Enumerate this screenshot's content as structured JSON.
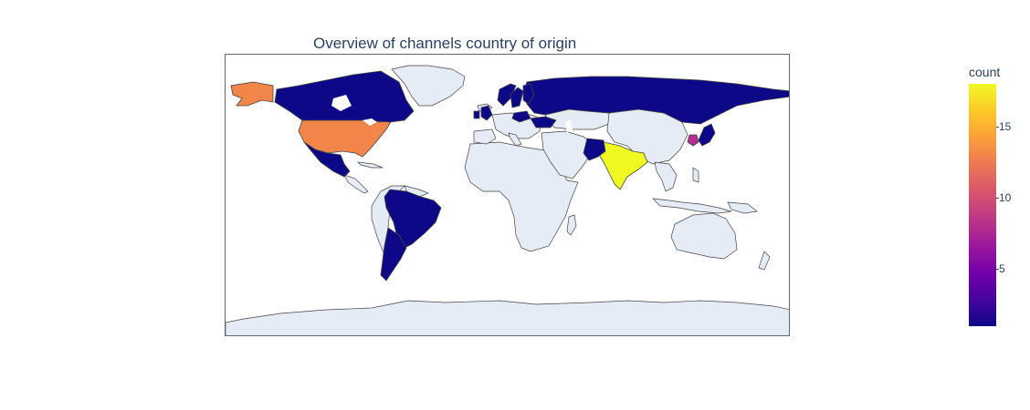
{
  "title": "Overview of channels country of origin",
  "colorbar": {
    "title": "count",
    "min": 1,
    "max": 18,
    "ticks": [
      {
        "value": 5,
        "label": "5"
      },
      {
        "value": 10,
        "label": "10"
      },
      {
        "value": 15,
        "label": "15"
      }
    ],
    "colorscale": [
      "#0d0887",
      "#46039f",
      "#7201a8",
      "#9c179e",
      "#bd3786",
      "#d8576b",
      "#ed7953",
      "#fb9f3a",
      "#fdca26",
      "#f0f921"
    ]
  },
  "chart_data": {
    "type": "choropleth",
    "colors": {
      "land": "#e5ecf6",
      "border": "#444444",
      "lake": "#ffffff"
    },
    "countries": [
      {
        "name": "India",
        "value": 18
      },
      {
        "name": "United States",
        "value": 13
      },
      {
        "name": "South Korea",
        "value": 8
      },
      {
        "name": "Canada",
        "value": 1
      },
      {
        "name": "Mexico",
        "value": 1
      },
      {
        "name": "Brazil",
        "value": 1
      },
      {
        "name": "Argentina",
        "value": 1
      },
      {
        "name": "Russia",
        "value": 1
      },
      {
        "name": "Pakistan",
        "value": 1
      },
      {
        "name": "Japan",
        "value": 1
      },
      {
        "name": "United Kingdom",
        "value": 1
      },
      {
        "name": "Ireland",
        "value": 1
      },
      {
        "name": "Norway",
        "value": 1
      },
      {
        "name": "Sweden",
        "value": 1
      },
      {
        "name": "Finland",
        "value": 1
      },
      {
        "name": "Poland",
        "value": 1
      },
      {
        "name": "Ukraine",
        "value": 1
      }
    ]
  }
}
